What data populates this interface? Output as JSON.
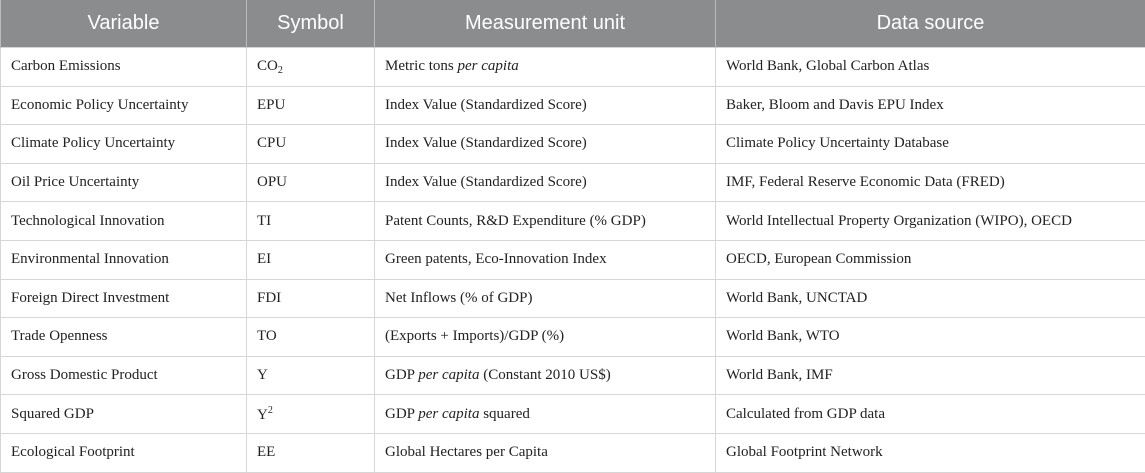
{
  "headers": [
    "Variable",
    "Symbol",
    "Measurement unit",
    "Data source"
  ],
  "rows": [
    {
      "variable": "Carbon Emissions",
      "symbol": {
        "base": "CO",
        "sub": "2"
      },
      "unit": {
        "pre": "Metric tons ",
        "ital": "per capita",
        "post": ""
      },
      "source": "World Bank, Global Carbon Atlas"
    },
    {
      "variable": "Economic Policy Uncertainty",
      "symbol": {
        "base": "EPU"
      },
      "unit": {
        "pre": "Index Value (Standardized Score)"
      },
      "source": "Baker, Bloom and Davis EPU Index"
    },
    {
      "variable": "Climate Policy Uncertainty",
      "symbol": {
        "base": "CPU"
      },
      "unit": {
        "pre": "Index Value (Standardized Score)"
      },
      "source": "Climate Policy Uncertainty Database"
    },
    {
      "variable": "Oil Price Uncertainty",
      "symbol": {
        "base": "OPU"
      },
      "unit": {
        "pre": "Index Value (Standardized Score)"
      },
      "source": "IMF, Federal Reserve Economic Data (FRED)"
    },
    {
      "variable": "Technological Innovation",
      "symbol": {
        "base": "TI"
      },
      "unit": {
        "pre": "Patent Counts, R&D Expenditure (% GDP)"
      },
      "source": "World Intellectual Property Organization (WIPO), OECD"
    },
    {
      "variable": "Environmental Innovation",
      "symbol": {
        "base": "EI"
      },
      "unit": {
        "pre": "Green patents, Eco-Innovation Index"
      },
      "source": "OECD, European Commission"
    },
    {
      "variable": "Foreign Direct Investment",
      "symbol": {
        "base": "FDI"
      },
      "unit": {
        "pre": "Net Inflows (% of GDP)"
      },
      "source": "World Bank, UNCTAD"
    },
    {
      "variable": "Trade Openness",
      "symbol": {
        "base": "TO"
      },
      "unit": {
        "pre": "(Exports + Imports)/GDP (%)"
      },
      "source": "World Bank, WTO"
    },
    {
      "variable": "Gross Domestic Product",
      "symbol": {
        "base": "Y"
      },
      "unit": {
        "pre": "GDP ",
        "ital": "per capita",
        "post": " (Constant 2010 US$)"
      },
      "source": "World Bank, IMF"
    },
    {
      "variable": "Squared GDP",
      "symbol": {
        "base": "Y",
        "sup": "2"
      },
      "unit": {
        "pre": "GDP ",
        "ital": "per capita",
        "post": " squared"
      },
      "source": "Calculated from GDP data"
    },
    {
      "variable": "Ecological Footprint",
      "symbol": {
        "base": "EE"
      },
      "unit": {
        "pre": "Global Hectares per Capita"
      },
      "source": "Global Footprint Network"
    }
  ]
}
